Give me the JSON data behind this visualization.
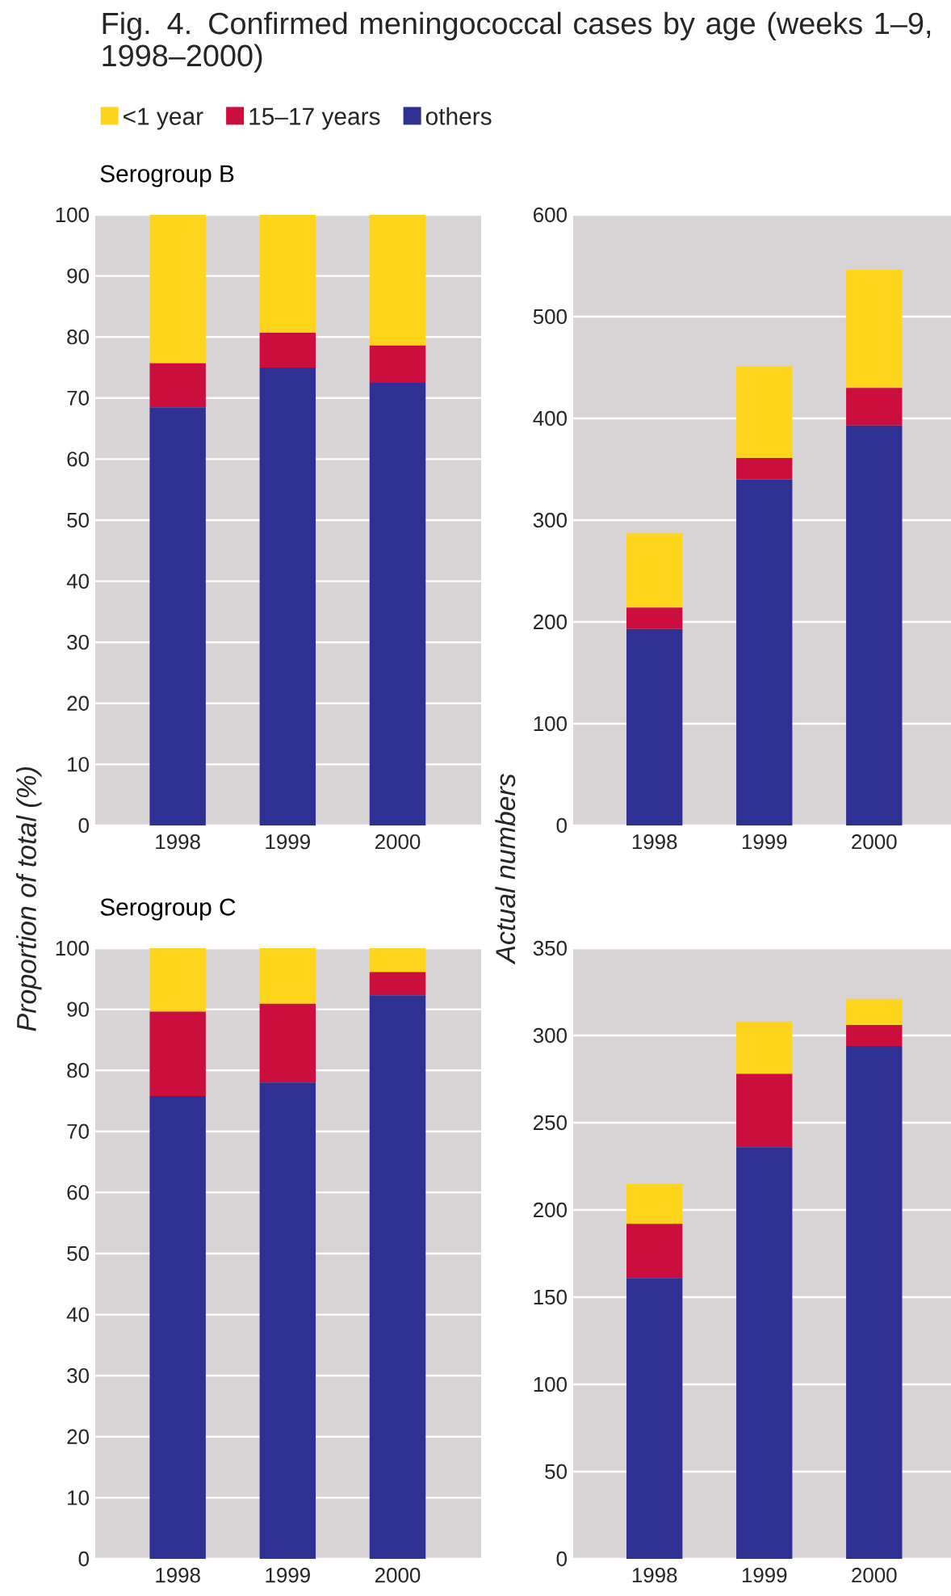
{
  "chart_data": [
    {
      "type": "bar",
      "stacked": true,
      "title": "Fig. 4. Confirmed meningococcal cases by age (weeks 1–9, 1998–2000)",
      "subtitle": "Serogroup B",
      "ylabel": "Proportion of total (%)",
      "legend": "top",
      "grid": "y",
      "categories": [
        "1998",
        "1999",
        "2000"
      ],
      "ylim": [
        0,
        100
      ],
      "yticks": [
        0,
        10,
        20,
        30,
        40,
        50,
        60,
        70,
        80,
        90,
        100
      ],
      "series": [
        {
          "name": "others",
          "color": "#2e3192",
          "values": [
            68.5,
            75,
            72.5
          ]
        },
        {
          "name": "15–17 years",
          "color": "#cc0e3e",
          "values": [
            7.2,
            5.7,
            6.1
          ]
        },
        {
          "name": "<1 year",
          "color": "#fed41d",
          "values": [
            24.3,
            19.3,
            21.4
          ]
        }
      ]
    },
    {
      "type": "bar",
      "stacked": true,
      "ylabel": "Actual numbers",
      "grid": "y",
      "categories": [
        "1998",
        "1999",
        "2000"
      ],
      "ylim": [
        0,
        600
      ],
      "yticks": [
        0,
        100,
        200,
        300,
        400,
        500,
        600
      ],
      "series": [
        {
          "color": "#2e3192",
          "values": [
            193,
            340,
            393
          ]
        },
        {
          "color": "#cc0e3e",
          "values": [
            21,
            21,
            37
          ]
        },
        {
          "color": "#fed41d",
          "values": [
            73,
            90,
            116
          ]
        }
      ]
    },
    {
      "type": "bar",
      "stacked": true,
      "subtitle": "Serogroup C",
      "grid": "y",
      "categories": [
        "1998",
        "1999",
        "2000"
      ],
      "ylim": [
        0,
        100
      ],
      "yticks": [
        0,
        10,
        20,
        30,
        40,
        50,
        60,
        70,
        80,
        90,
        100
      ],
      "series": [
        {
          "color": "#2e3192",
          "values": [
            75.8,
            78,
            92.3
          ]
        },
        {
          "color": "#cc0e3e",
          "values": [
            13.8,
            12.9,
            3.8
          ]
        },
        {
          "color": "#fed41d",
          "values": [
            10.4,
            9.1,
            3.9
          ]
        }
      ]
    },
    {
      "type": "bar",
      "stacked": true,
      "grid": "y",
      "categories": [
        "1998",
        "1999",
        "2000"
      ],
      "ylim": [
        0,
        350
      ],
      "yticks": [
        0,
        50,
        100,
        150,
        200,
        250,
        300,
        350
      ],
      "series": [
        {
          "color": "#2e3192",
          "values": [
            161,
            236,
            294
          ]
        },
        {
          "color": "#cc0e3e",
          "values": [
            31,
            42,
            12
          ]
        },
        {
          "color": "#fed41d",
          "values": [
            23,
            30,
            15
          ]
        }
      ]
    }
  ]
}
